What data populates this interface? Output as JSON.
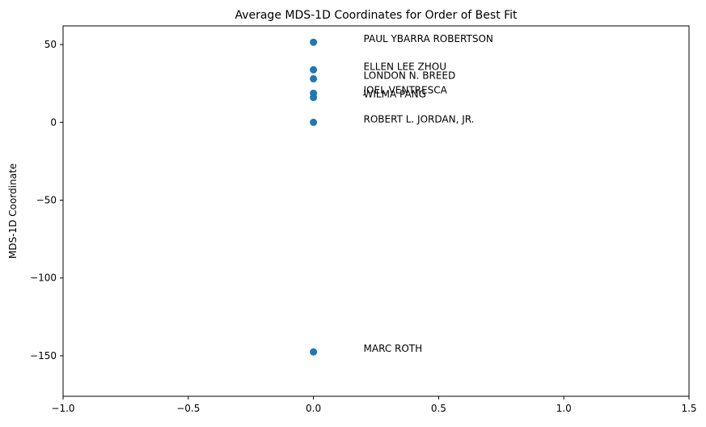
{
  "chart_data": {
    "type": "scatter",
    "title": "Average MDS-1D Coordinates for Order of Best Fit",
    "xlabel": "",
    "ylabel": "MDS-1D Coordinate",
    "xlim": [
      -1.0,
      1.5
    ],
    "ylim": [
      -176,
      62
    ],
    "xticks": [
      -1.0,
      -0.5,
      0.0,
      0.5,
      1.0,
      1.5
    ],
    "xtick_labels": [
      "−1.0",
      "−0.5",
      "0.0",
      "0.5",
      "1.0",
      "1.5"
    ],
    "yticks": [
      50,
      0,
      -50,
      -100,
      -150
    ],
    "ytick_labels": [
      "50",
      "0",
      "−50",
      "−100",
      "−150"
    ],
    "grid": false,
    "marker_color": "#1f77b4",
    "points": [
      {
        "label": "PAUL YBARRA ROBERTSON",
        "x": 0.0,
        "y": 51.5
      },
      {
        "label": "ELLEN LEE ZHOU",
        "x": 0.0,
        "y": 33.8
      },
      {
        "label": "LONDON N. BREED",
        "x": 0.0,
        "y": 28.0
      },
      {
        "label": "JOEL VENTRESCA",
        "x": 0.0,
        "y": 18.7
      },
      {
        "label": "WILMA PANG",
        "x": 0.0,
        "y": 16.0
      },
      {
        "label": "ROBERT L. JORDAN, JR.",
        "x": 0.0,
        "y": 0.0
      },
      {
        "label": "MARC ROTH",
        "x": 0.0,
        "y": -147.5
      }
    ]
  }
}
